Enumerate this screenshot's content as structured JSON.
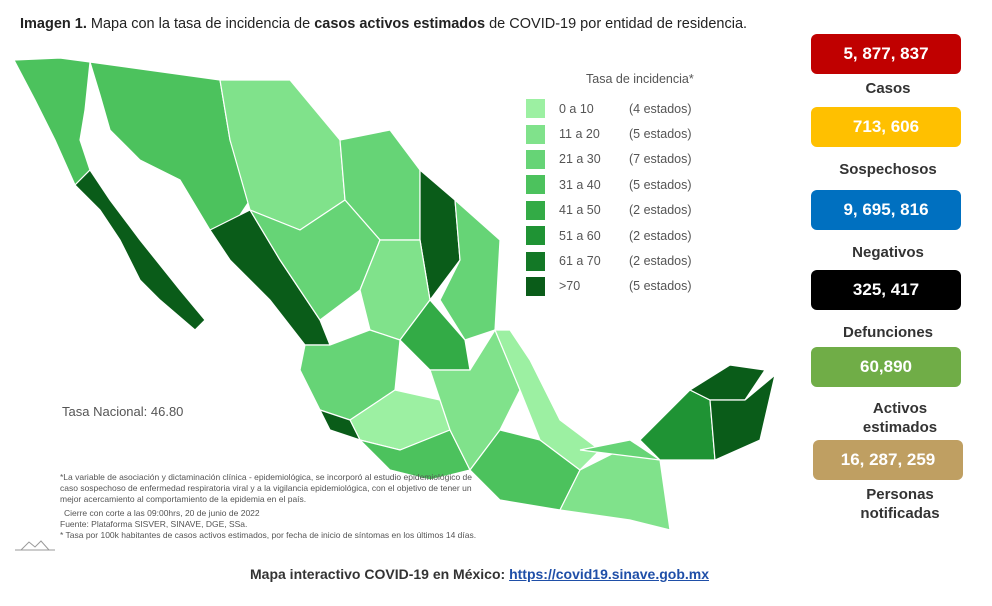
{
  "title": {
    "prefix": "Imagen 1.",
    "part1": " Mapa con la tasa de incidencia de ",
    "bold": "casos activos estimados",
    "part2": " de COVID-19 por entidad de residencia."
  },
  "legend": {
    "title": "Tasa de incidencia*",
    "items": [
      {
        "range": "0 a 10",
        "count": "(4 estados)",
        "color": "#9cf0a2"
      },
      {
        "range": "11 a 20",
        "count": "(5 estados)",
        "color": "#80e28b"
      },
      {
        "range": "21 a 30",
        "count": "(7 estados)",
        "color": "#66d476"
      },
      {
        "range": "31 a 40",
        "count": "(5 estados)",
        "color": "#4cc25d"
      },
      {
        "range": "41 a 50",
        "count": "(2 estados)",
        "color": "#33ab46"
      },
      {
        "range": "51 a 60",
        "count": "(2 estados)",
        "color": "#1f9334"
      },
      {
        "range": "61 a 70",
        "count": "(2 estados)",
        "color": "#137826"
      },
      {
        "range": ">70",
        "count": "(5 estados)",
        "color": "#0a5c19"
      }
    ]
  },
  "tasa_nacional": "Tasa Nacional: 46.80",
  "notes": [
    "*La variable de asociación y dictaminación clínica - epidemiológica, se incorporó al estudio epidemiológico de caso sospechoso de enfermedad respiratoria viral y a la vigilancia epidemiológica, con el objetivo de tener un mejor acercamiento al comportamiento de la epidemia en el país.",
    "Cierre con corte a las 09:00hrs, 20 de junio de 2022",
    "Fuente: Plataforma SISVER, SINAVE, DGE, SSa.",
    "* Tasa por 100k habitantes de casos activos estimados, por fecha de inicio de síntomas en los últimos 14 días."
  ],
  "footer": {
    "label": "Mapa interactivo COVID-19 en México: ",
    "link": "https://covid19.sinave.gob.mx"
  },
  "stats": [
    {
      "value": "5, 877, 837",
      "label": "Casos",
      "color": "#c00000",
      "text": "#ffffff"
    },
    {
      "value": "713, 606",
      "label": "Sospechosos",
      "color": "#ffc000",
      "text": "#ffffff"
    },
    {
      "value": "9, 695, 816",
      "label": "Negativos",
      "color": "#0070c0",
      "text": "#ffffff"
    },
    {
      "value": "325, 417",
      "label": "Defunciones",
      "color": "#000000",
      "text": "#ffffff"
    },
    {
      "value": "60,890",
      "label": "Activos estimados",
      "color": "#70ad47",
      "text": "#ffffff"
    },
    {
      "value": "16, 287, 259",
      "label": "Personas notificadas",
      "color": "#bf9f62",
      "text": "#ffffff"
    }
  ]
}
